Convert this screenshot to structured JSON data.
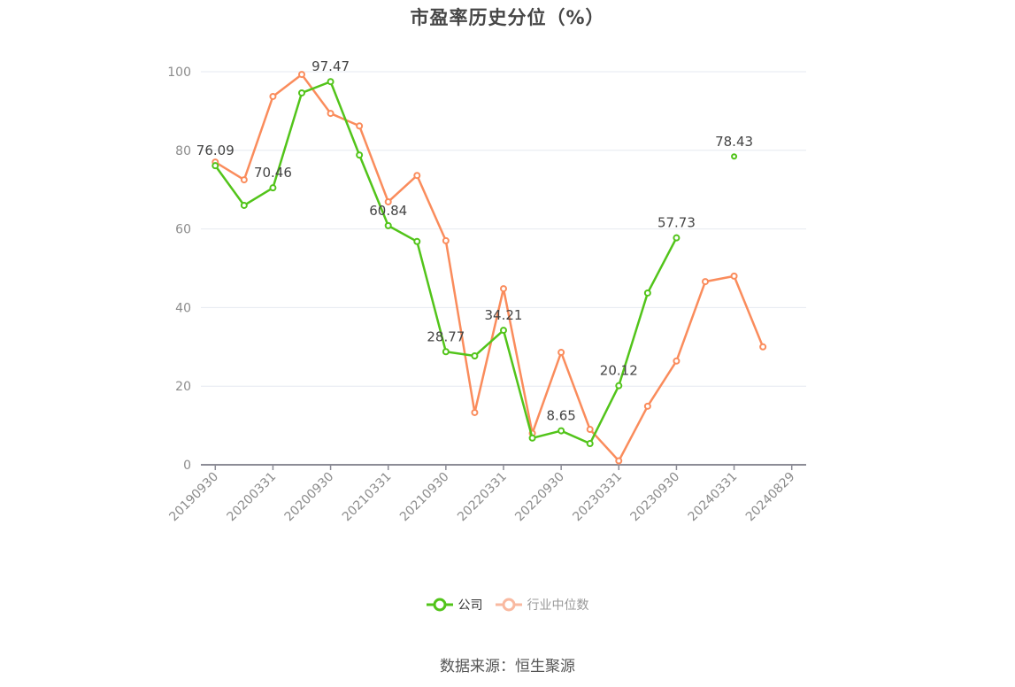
{
  "title": "市盈率历史分位（%）",
  "legend": {
    "company_label": "公司",
    "industry_label": "行业中位数"
  },
  "footer": {
    "source": "数据来源：恒生聚源"
  },
  "colors": {
    "company": "#52c41a",
    "industry": "#fa8c5c",
    "industry_legend": "#f9b9a0",
    "grid": "#e6e9f0",
    "axis": "#8c8c96",
    "tick_label": "#8c8c8c",
    "title": "#464646"
  },
  "chart_data": {
    "type": "line",
    "title": "市盈率历史分位（%）",
    "xlabel": "",
    "ylabel": "",
    "ylim": [
      0,
      100
    ],
    "yticks": [
      0,
      20,
      40,
      60,
      80,
      100
    ],
    "grid": true,
    "legend_position": "bottom",
    "categories": [
      "20190930",
      "",
      "20200331",
      "",
      "20200930",
      "",
      "20210331",
      "",
      "20210930",
      "",
      "20220331",
      "",
      "20220930",
      "",
      "20230331",
      "",
      "20230930",
      "",
      "20240331",
      "",
      "20240829"
    ],
    "tick_labels": [
      "20190930",
      "20200331",
      "20200930",
      "20210331",
      "20210930",
      "20220331",
      "20220930",
      "20230331",
      "20230930",
      "20240331",
      "20240829"
    ],
    "series": [
      {
        "name": "公司",
        "values": [
          76.09,
          66.0,
          70.46,
          94.6,
          97.47,
          78.8,
          60.84,
          56.8,
          28.77,
          27.7,
          34.21,
          6.8,
          8.65,
          5.4,
          20.12,
          43.7,
          57.73,
          null,
          78.43,
          null,
          null
        ],
        "labeled_points": [
          {
            "index": 0,
            "label": "76.09"
          },
          {
            "index": 2,
            "label": "70.46"
          },
          {
            "index": 4,
            "label": "97.47"
          },
          {
            "index": 6,
            "label": "60.84"
          },
          {
            "index": 8,
            "label": "28.77"
          },
          {
            "index": 10,
            "label": "34.21"
          },
          {
            "index": 12,
            "label": "8.65"
          },
          {
            "index": 14,
            "label": "20.12"
          },
          {
            "index": 16,
            "label": "57.73"
          },
          {
            "index": 18,
            "label": "78.43"
          }
        ]
      },
      {
        "name": "行业中位数",
        "values": [
          77.0,
          72.5,
          93.7,
          99.3,
          89.4,
          86.2,
          66.9,
          73.6,
          57.0,
          13.3,
          44.8,
          8.0,
          28.6,
          9.0,
          1.0,
          14.9,
          26.4,
          46.6,
          48.0,
          30.0,
          null
        ]
      }
    ]
  }
}
